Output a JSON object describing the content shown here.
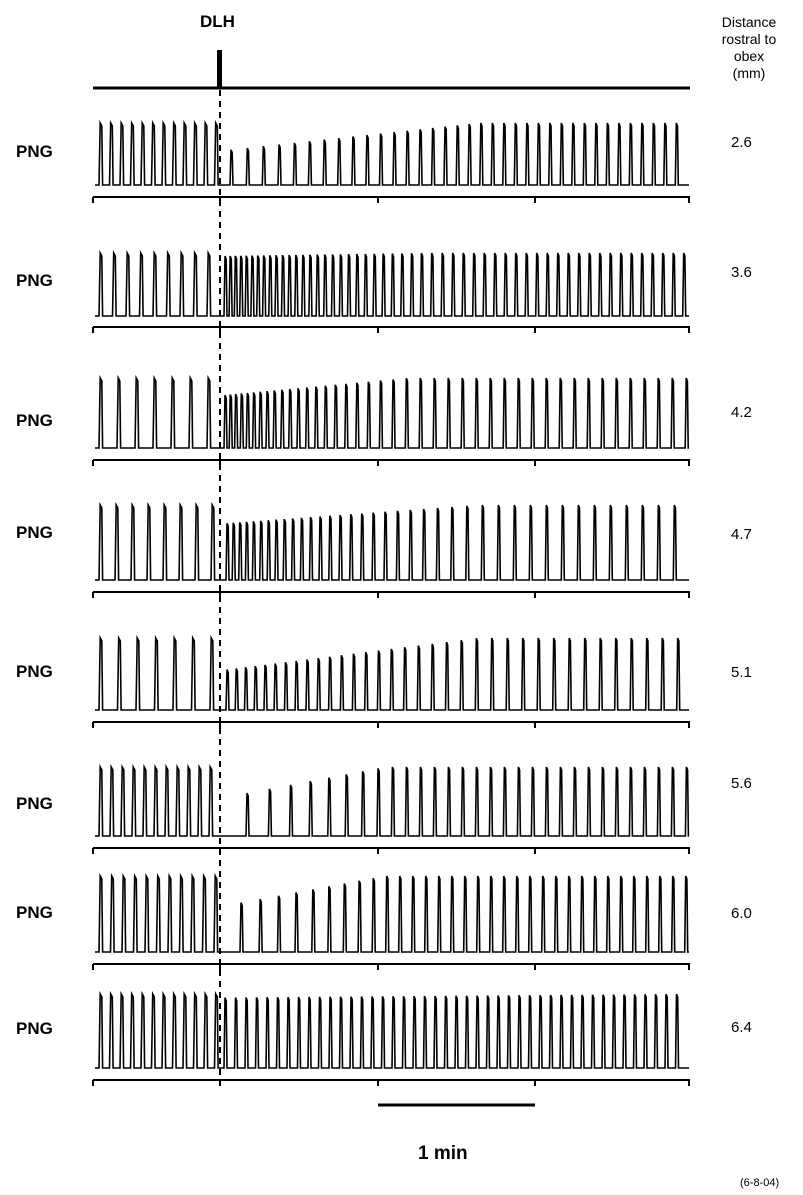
{
  "figure": {
    "stimulus_label": "DLH",
    "distance_header": [
      "Distance",
      "rostral to",
      "obex",
      "(mm)"
    ],
    "scale_bar_label": "1  min",
    "date_code": "(6-8-04)"
  },
  "traces": [
    {
      "label": "PNG",
      "distance": "2.6"
    },
    {
      "label": "PNG",
      "distance": "3.6"
    },
    {
      "label": "PNG",
      "distance": "4.2"
    },
    {
      "label": "PNG",
      "distance": "4.7"
    },
    {
      "label": "PNG",
      "distance": "5.1"
    },
    {
      "label": "PNG",
      "distance": "5.6"
    },
    {
      "label": "PNG",
      "distance": "6.0"
    },
    {
      "label": "PNG",
      "distance": "6.4"
    }
  ],
  "colors": {
    "ink": "#000000",
    "background": "#ffffff"
  }
}
